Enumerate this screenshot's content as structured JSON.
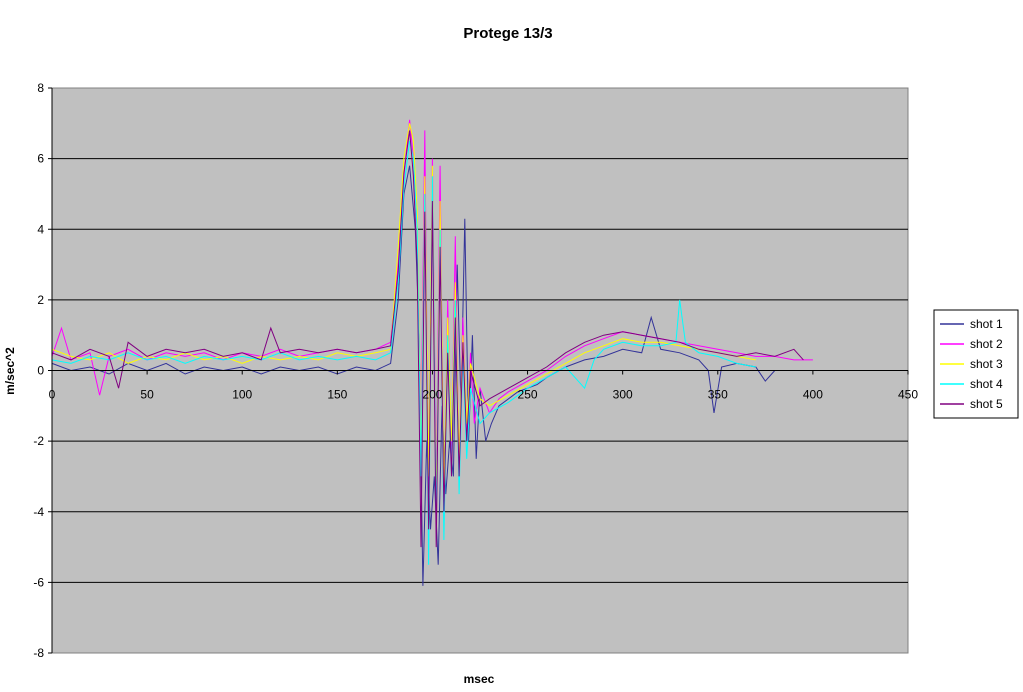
{
  "chart_data": {
    "type": "line",
    "title": "Protege 13/3",
    "xlabel": "msec",
    "ylabel": "m/sec^2",
    "xlim": [
      0,
      450
    ],
    "ylim": [
      -8,
      8
    ],
    "x_ticks": [
      0,
      50,
      100,
      150,
      200,
      250,
      300,
      350,
      400,
      450
    ],
    "y_ticks": [
      -8,
      -6,
      -4,
      -2,
      0,
      2,
      4,
      6,
      8
    ],
    "grid": true,
    "legend_position": "right",
    "plot_background": "#c0c0c0",
    "series": [
      {
        "name": "shot 1",
        "color": "#333399",
        "points": [
          [
            0,
            0.2
          ],
          [
            10,
            0.0
          ],
          [
            20,
            0.1
          ],
          [
            30,
            -0.1
          ],
          [
            40,
            0.2
          ],
          [
            50,
            0.0
          ],
          [
            60,
            0.2
          ],
          [
            70,
            -0.1
          ],
          [
            80,
            0.1
          ],
          [
            90,
            0.0
          ],
          [
            100,
            0.1
          ],
          [
            110,
            -0.1
          ],
          [
            120,
            0.1
          ],
          [
            130,
            0.0
          ],
          [
            140,
            0.1
          ],
          [
            150,
            -0.1
          ],
          [
            160,
            0.1
          ],
          [
            170,
            0.0
          ],
          [
            178,
            0.2
          ],
          [
            182,
            2.0
          ],
          [
            185,
            5.0
          ],
          [
            188,
            5.8
          ],
          [
            191,
            4.0
          ],
          [
            193,
            1.0
          ],
          [
            195,
            -6.1
          ],
          [
            197,
            -2.0
          ],
          [
            199,
            -4.5
          ],
          [
            201,
            -3.0
          ],
          [
            203,
            -5.5
          ],
          [
            205,
            -1.0
          ],
          [
            207,
            -3.5
          ],
          [
            209,
            -2.0
          ],
          [
            211,
            -3.0
          ],
          [
            213,
            3.0
          ],
          [
            215,
            -1.0
          ],
          [
            217,
            4.3
          ],
          [
            219,
            -2.0
          ],
          [
            221,
            1.0
          ],
          [
            223,
            -2.5
          ],
          [
            225,
            -0.5
          ],
          [
            228,
            -2.0
          ],
          [
            231,
            -1.5
          ],
          [
            235,
            -1.0
          ],
          [
            240,
            -0.8
          ],
          [
            245,
            -0.6
          ],
          [
            250,
            -0.5
          ],
          [
            255,
            -0.4
          ],
          [
            260,
            -0.2
          ],
          [
            270,
            0.1
          ],
          [
            280,
            0.3
          ],
          [
            290,
            0.4
          ],
          [
            300,
            0.6
          ],
          [
            310,
            0.5
          ],
          [
            315,
            1.5
          ],
          [
            320,
            0.6
          ],
          [
            330,
            0.5
          ],
          [
            340,
            0.3
          ],
          [
            345,
            0.0
          ],
          [
            348,
            -1.2
          ],
          [
            352,
            0.1
          ],
          [
            360,
            0.2
          ],
          [
            370,
            0.1
          ],
          [
            375,
            -0.3
          ],
          [
            380,
            0.0
          ]
        ]
      },
      {
        "name": "shot 2",
        "color": "#ff00ff",
        "points": [
          [
            0,
            0.4
          ],
          [
            5,
            1.2
          ],
          [
            10,
            0.3
          ],
          [
            20,
            0.5
          ],
          [
            25,
            -0.7
          ],
          [
            30,
            0.4
          ],
          [
            40,
            0.6
          ],
          [
            50,
            0.3
          ],
          [
            60,
            0.5
          ],
          [
            70,
            0.4
          ],
          [
            80,
            0.5
          ],
          [
            90,
            0.3
          ],
          [
            100,
            0.5
          ],
          [
            110,
            0.4
          ],
          [
            120,
            0.6
          ],
          [
            130,
            0.4
          ],
          [
            140,
            0.5
          ],
          [
            150,
            0.6
          ],
          [
            160,
            0.5
          ],
          [
            170,
            0.6
          ],
          [
            178,
            0.8
          ],
          [
            182,
            3.0
          ],
          [
            185,
            5.5
          ],
          [
            188,
            7.1
          ],
          [
            190,
            6.0
          ],
          [
            192,
            4.0
          ],
          [
            194,
            -2.0
          ],
          [
            196,
            6.8
          ],
          [
            198,
            -4.0
          ],
          [
            200,
            6.0
          ],
          [
            202,
            -3.5
          ],
          [
            204,
            5.8
          ],
          [
            206,
            -4.2
          ],
          [
            208,
            2.0
          ],
          [
            210,
            -2.5
          ],
          [
            212,
            3.8
          ],
          [
            214,
            -3.0
          ],
          [
            216,
            1.5
          ],
          [
            218,
            -2.0
          ],
          [
            220,
            0.5
          ],
          [
            222,
            -1.5
          ],
          [
            225,
            -0.5
          ],
          [
            230,
            -1.2
          ],
          [
            235,
            -0.8
          ],
          [
            240,
            -0.6
          ],
          [
            250,
            -0.3
          ],
          [
            260,
            0.0
          ],
          [
            270,
            0.4
          ],
          [
            280,
            0.7
          ],
          [
            290,
            0.9
          ],
          [
            300,
            1.1
          ],
          [
            310,
            1.0
          ],
          [
            320,
            0.9
          ],
          [
            330,
            0.8
          ],
          [
            340,
            0.7
          ],
          [
            350,
            0.6
          ],
          [
            360,
            0.5
          ],
          [
            370,
            0.4
          ],
          [
            380,
            0.4
          ],
          [
            390,
            0.3
          ],
          [
            400,
            0.3
          ]
        ]
      },
      {
        "name": "shot 3",
        "color": "#ffff00",
        "points": [
          [
            0,
            0.6
          ],
          [
            10,
            0.4
          ],
          [
            20,
            0.3
          ],
          [
            30,
            0.5
          ],
          [
            40,
            0.2
          ],
          [
            50,
            0.4
          ],
          [
            60,
            0.3
          ],
          [
            70,
            0.5
          ],
          [
            80,
            0.3
          ],
          [
            90,
            0.4
          ],
          [
            100,
            0.2
          ],
          [
            110,
            0.4
          ],
          [
            120,
            0.3
          ],
          [
            130,
            0.4
          ],
          [
            140,
            0.3
          ],
          [
            150,
            0.5
          ],
          [
            160,
            0.4
          ],
          [
            170,
            0.5
          ],
          [
            178,
            0.6
          ],
          [
            182,
            3.5
          ],
          [
            185,
            6.0
          ],
          [
            188,
            7.0
          ],
          [
            190,
            6.5
          ],
          [
            192,
            4.5
          ],
          [
            194,
            -2.5
          ],
          [
            196,
            5.5
          ],
          [
            198,
            -3.0
          ],
          [
            200,
            5.8
          ],
          [
            202,
            -4.0
          ],
          [
            204,
            4.8
          ],
          [
            206,
            -3.5
          ],
          [
            208,
            1.5
          ],
          [
            210,
            -2.0
          ],
          [
            212,
            2.5
          ],
          [
            214,
            -2.5
          ],
          [
            216,
            1.0
          ],
          [
            218,
            -1.5
          ],
          [
            220,
            0.2
          ],
          [
            225,
            -0.8
          ],
          [
            230,
            -1.0
          ],
          [
            240,
            -0.7
          ],
          [
            250,
            -0.4
          ],
          [
            260,
            -0.1
          ],
          [
            270,
            0.2
          ],
          [
            280,
            0.5
          ],
          [
            290,
            0.7
          ],
          [
            300,
            0.9
          ],
          [
            310,
            0.8
          ],
          [
            320,
            0.8
          ],
          [
            330,
            0.7
          ],
          [
            340,
            0.6
          ],
          [
            350,
            0.5
          ],
          [
            360,
            0.4
          ],
          [
            370,
            0.3
          ]
        ]
      },
      {
        "name": "shot 4",
        "color": "#00ffff",
        "points": [
          [
            0,
            0.3
          ],
          [
            10,
            0.2
          ],
          [
            20,
            0.4
          ],
          [
            30,
            0.3
          ],
          [
            40,
            0.5
          ],
          [
            50,
            0.3
          ],
          [
            60,
            0.4
          ],
          [
            70,
            0.2
          ],
          [
            80,
            0.4
          ],
          [
            90,
            0.3
          ],
          [
            100,
            0.4
          ],
          [
            110,
            0.3
          ],
          [
            120,
            0.5
          ],
          [
            130,
            0.3
          ],
          [
            140,
            0.4
          ],
          [
            150,
            0.3
          ],
          [
            160,
            0.4
          ],
          [
            170,
            0.3
          ],
          [
            178,
            0.5
          ],
          [
            182,
            2.5
          ],
          [
            185,
            5.2
          ],
          [
            188,
            6.5
          ],
          [
            190,
            6.0
          ],
          [
            192,
            4.0
          ],
          [
            194,
            -3.0
          ],
          [
            196,
            5.0
          ],
          [
            198,
            -5.5
          ],
          [
            200,
            5.5
          ],
          [
            202,
            -4.5
          ],
          [
            204,
            4.0
          ],
          [
            206,
            -4.8
          ],
          [
            208,
            1.0
          ],
          [
            210,
            -3.0
          ],
          [
            212,
            2.0
          ],
          [
            214,
            -3.5
          ],
          [
            216,
            0.5
          ],
          [
            218,
            -2.5
          ],
          [
            220,
            -0.5
          ],
          [
            225,
            -1.5
          ],
          [
            230,
            -1.2
          ],
          [
            240,
            -0.9
          ],
          [
            250,
            -0.5
          ],
          [
            260,
            -0.2
          ],
          [
            270,
            0.1
          ],
          [
            280,
            -0.5
          ],
          [
            285,
            0.3
          ],
          [
            290,
            0.6
          ],
          [
            300,
            0.8
          ],
          [
            310,
            0.7
          ],
          [
            320,
            0.7
          ],
          [
            328,
            0.8
          ],
          [
            330,
            2.0
          ],
          [
            333,
            0.8
          ],
          [
            340,
            0.5
          ],
          [
            350,
            0.4
          ],
          [
            360,
            0.2
          ],
          [
            370,
            0.1
          ]
        ]
      },
      {
        "name": "shot 5",
        "color": "#800080",
        "points": [
          [
            0,
            0.5
          ],
          [
            10,
            0.3
          ],
          [
            20,
            0.6
          ],
          [
            30,
            0.4
          ],
          [
            35,
            -0.5
          ],
          [
            40,
            0.8
          ],
          [
            50,
            0.4
          ],
          [
            60,
            0.6
          ],
          [
            70,
            0.5
          ],
          [
            80,
            0.6
          ],
          [
            90,
            0.4
          ],
          [
            100,
            0.5
          ],
          [
            110,
            0.3
          ],
          [
            115,
            1.2
          ],
          [
            120,
            0.5
          ],
          [
            130,
            0.6
          ],
          [
            140,
            0.5
          ],
          [
            150,
            0.6
          ],
          [
            160,
            0.5
          ],
          [
            170,
            0.6
          ],
          [
            178,
            0.7
          ],
          [
            182,
            2.8
          ],
          [
            185,
            5.6
          ],
          [
            188,
            6.8
          ],
          [
            190,
            5.5
          ],
          [
            192,
            3.0
          ],
          [
            194,
            -5.0
          ],
          [
            196,
            4.5
          ],
          [
            198,
            -4.5
          ],
          [
            200,
            4.8
          ],
          [
            202,
            -5.0
          ],
          [
            204,
            3.5
          ],
          [
            206,
            -4.0
          ],
          [
            208,
            0.5
          ],
          [
            210,
            -3.0
          ],
          [
            212,
            1.5
          ],
          [
            214,
            -3.0
          ],
          [
            216,
            0.8
          ],
          [
            218,
            -2.0
          ],
          [
            220,
            0.0
          ],
          [
            225,
            -1.0
          ],
          [
            230,
            -0.8
          ],
          [
            240,
            -0.5
          ],
          [
            250,
            -0.2
          ],
          [
            260,
            0.1
          ],
          [
            270,
            0.5
          ],
          [
            280,
            0.8
          ],
          [
            290,
            1.0
          ],
          [
            300,
            1.1
          ],
          [
            310,
            1.0
          ],
          [
            320,
            0.9
          ],
          [
            330,
            0.8
          ],
          [
            340,
            0.6
          ],
          [
            350,
            0.5
          ],
          [
            360,
            0.4
          ],
          [
            370,
            0.5
          ],
          [
            380,
            0.4
          ],
          [
            390,
            0.6
          ],
          [
            395,
            0.3
          ]
        ]
      }
    ]
  }
}
